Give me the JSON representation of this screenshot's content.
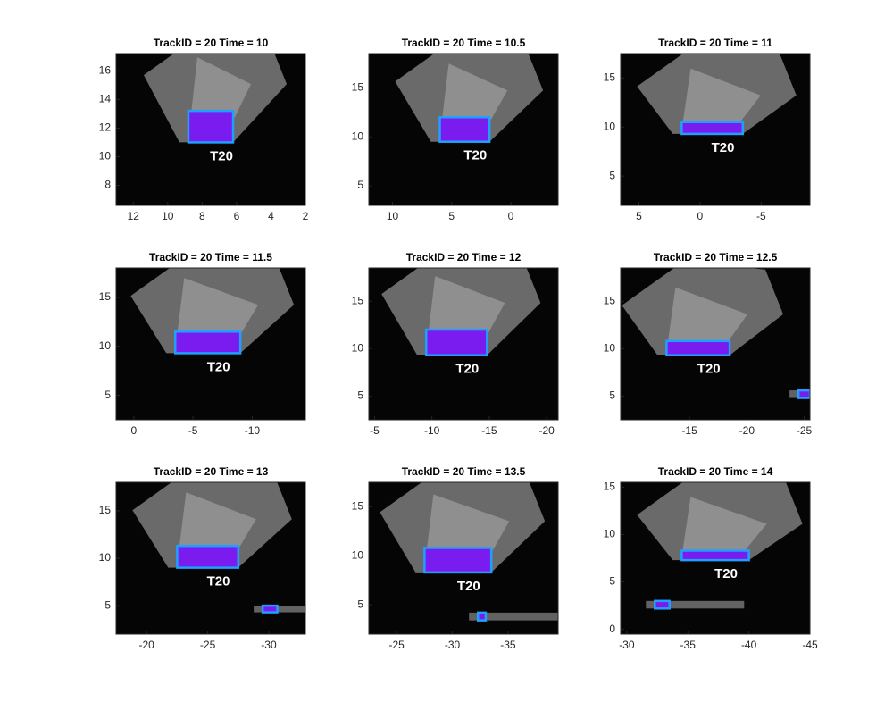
{
  "chart_data": [
    {
      "type": "image",
      "title": "TrackID = 20 Time = 10",
      "xlim": [
        13,
        2
      ],
      "xticks": [
        12,
        10,
        8,
        6,
        4,
        2
      ],
      "ylim": [
        6.6,
        17.2
      ],
      "yticks": [
        8,
        10,
        12,
        14,
        16
      ],
      "tracks": [
        {
          "label": "T20",
          "x": [
            8.8,
            6.2
          ],
          "y": [
            11,
            13.2
          ]
        }
      ]
    },
    {
      "type": "image",
      "title": "TrackID = 20 Time = 10.5",
      "xlim": [
        12,
        -4
      ],
      "xticks": [
        10,
        5,
        0
      ],
      "ylim": [
        3,
        18.5
      ],
      "yticks": [
        5,
        10,
        15
      ],
      "tracks": [
        {
          "label": "T20",
          "x": [
            6,
            1.8
          ],
          "y": [
            9.5,
            12
          ]
        }
      ]
    },
    {
      "type": "image",
      "title": "TrackID = 20 Time = 11",
      "xlim": [
        6.5,
        -9
      ],
      "xticks": [
        5,
        0,
        -5
      ],
      "ylim": [
        2,
        17.5
      ],
      "yticks": [
        5,
        10,
        15
      ],
      "tracks": [
        {
          "label": "T20",
          "x": [
            1.5,
            -3.5
          ],
          "y": [
            9.3,
            10.5
          ]
        }
      ]
    },
    {
      "type": "image",
      "title": "TrackID = 20 Time = 11.5",
      "xlim": [
        1.5,
        -14.5
      ],
      "xticks": [
        0,
        -5,
        -10
      ],
      "ylim": [
        2.5,
        18
      ],
      "yticks": [
        5,
        10,
        15
      ],
      "tracks": [
        {
          "label": "T20",
          "x": [
            -3.5,
            -9
          ],
          "y": [
            9.3,
            11.5
          ]
        }
      ]
    },
    {
      "type": "image",
      "title": "TrackID = 20 Time = 12",
      "xlim": [
        -4.5,
        -21
      ],
      "xticks": [
        -5,
        -10,
        -15,
        -20
      ],
      "ylim": [
        2.5,
        18.5
      ],
      "yticks": [
        5,
        10,
        15
      ],
      "tracks": [
        {
          "label": "T20",
          "x": [
            -9.5,
            -14.8
          ],
          "y": [
            9.3,
            12
          ]
        }
      ]
    },
    {
      "type": "image",
      "title": "TrackID = 20 Time = 12.5",
      "xlim": [
        -9,
        -25.5
      ],
      "xticks": [
        -15,
        -20,
        -25
      ],
      "ylim": [
        2.5,
        18.5
      ],
      "yticks": [
        5,
        10,
        15
      ],
      "tracks": [
        {
          "label": "T20",
          "x": [
            -13,
            -18.5
          ],
          "y": [
            9.3,
            10.8
          ]
        },
        {
          "x": [
            -24.5,
            -25.5
          ],
          "y": [
            4.8,
            5.6
          ]
        }
      ]
    },
    {
      "type": "image",
      "title": "TrackID = 20 Time = 13",
      "xlim": [
        -17.5,
        -33
      ],
      "xticks": [
        -20,
        -25,
        -30
      ],
      "ylim": [
        2,
        18
      ],
      "yticks": [
        5,
        10,
        15
      ],
      "tracks": [
        {
          "label": "T20",
          "x": [
            -22.5,
            -27.5
          ],
          "y": [
            9,
            11.3
          ]
        },
        {
          "x": [
            -29.5,
            -30.7
          ],
          "y": [
            4.3,
            5
          ]
        }
      ]
    },
    {
      "type": "image",
      "title": "TrackID = 20 Time = 13.5",
      "xlim": [
        -22.5,
        -39.5
      ],
      "xticks": [
        -25,
        -30,
        -35
      ],
      "ylim": [
        2,
        17.5
      ],
      "yticks": [
        5,
        10,
        15
      ],
      "tracks": [
        {
          "label": "T20",
          "x": [
            -27.5,
            -33.5
          ],
          "y": [
            8.3,
            10.8
          ]
        },
        {
          "x": [
            -32.3,
            -33
          ],
          "y": [
            3.4,
            4.2
          ]
        }
      ]
    },
    {
      "type": "image",
      "title": "TrackID = 20 Time = 14",
      "xlim": [
        -29.5,
        -45
      ],
      "xticks": [
        -30,
        -35,
        -40,
        -45
      ],
      "ylim": [
        -0.5,
        15.5
      ],
      "yticks": [
        0,
        5,
        10,
        15
      ],
      "tracks": [
        {
          "label": "T20",
          "x": [
            -34.5,
            -40
          ],
          "y": [
            7.3,
            8.3
          ]
        },
        {
          "x": [
            -32.3,
            -33.5
          ],
          "y": [
            2.2,
            3
          ]
        }
      ]
    }
  ]
}
